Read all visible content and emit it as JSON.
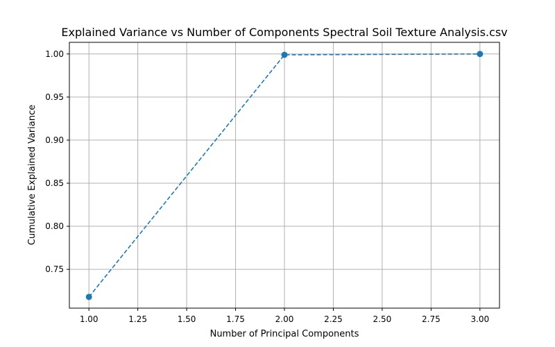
{
  "chart_data": {
    "type": "line",
    "title": "Explained Variance vs Number of Components Spectral Soil Texture Analysis.csv",
    "xlabel": "Number of Principal Components",
    "ylabel": "Cumulative Explained Variance",
    "x_ticks": [
      "1.00",
      "1.25",
      "1.50",
      "1.75",
      "2.00",
      "2.25",
      "2.50",
      "2.75",
      "3.00"
    ],
    "y_ticks": [
      "0.75",
      "0.80",
      "0.85",
      "0.90",
      "0.95",
      "1.00"
    ],
    "xlim": [
      0.9,
      3.1
    ],
    "ylim": [
      0.705,
      1.0135
    ],
    "grid": true,
    "line_style": "dashed",
    "marker": "circle",
    "color": "#1f77b4",
    "series": [
      {
        "x": [
          1,
          2,
          3
        ],
        "y": [
          0.718,
          0.999,
          1.0
        ]
      }
    ]
  }
}
